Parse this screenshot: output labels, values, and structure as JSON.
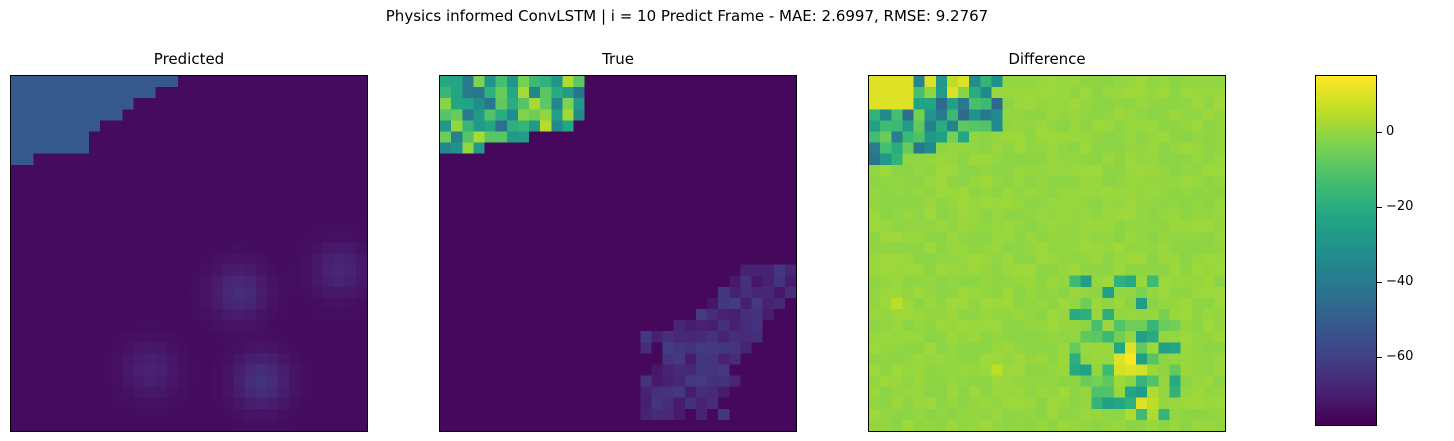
{
  "title": "Physics informed ConvLSTM | i = 10 Predict Frame - MAE: 2.6997, RMSE: 9.2767",
  "panels": [
    {
      "id": "predicted",
      "title": "Predicted"
    },
    {
      "id": "true",
      "title": "True"
    },
    {
      "id": "difference",
      "title": "Difference"
    }
  ],
  "colormap": "viridis",
  "colorbar": {
    "range": [
      -78,
      15
    ],
    "ticks": [
      {
        "value": 0,
        "label": "0"
      },
      {
        "value": -20,
        "label": "−20"
      },
      {
        "value": -40,
        "label": "−40"
      },
      {
        "value": -60,
        "label": "−60"
      }
    ]
  },
  "chart_data": {
    "type": "heatmap",
    "title": "Physics informed ConvLSTM | i = 10 Predict Frame - MAE: 2.6997, RMSE: 9.2767",
    "metrics": {
      "frame": 10,
      "MAE": 2.6997,
      "RMSE": 9.2767
    },
    "grid_size": [
      32,
      32
    ],
    "panels": [
      "Predicted",
      "True",
      "Difference"
    ],
    "colorbar_range": [
      -78,
      15
    ],
    "colorbar_ticks": [
      0,
      -20,
      -40,
      -60
    ],
    "axes_ticks_visible": false
  }
}
